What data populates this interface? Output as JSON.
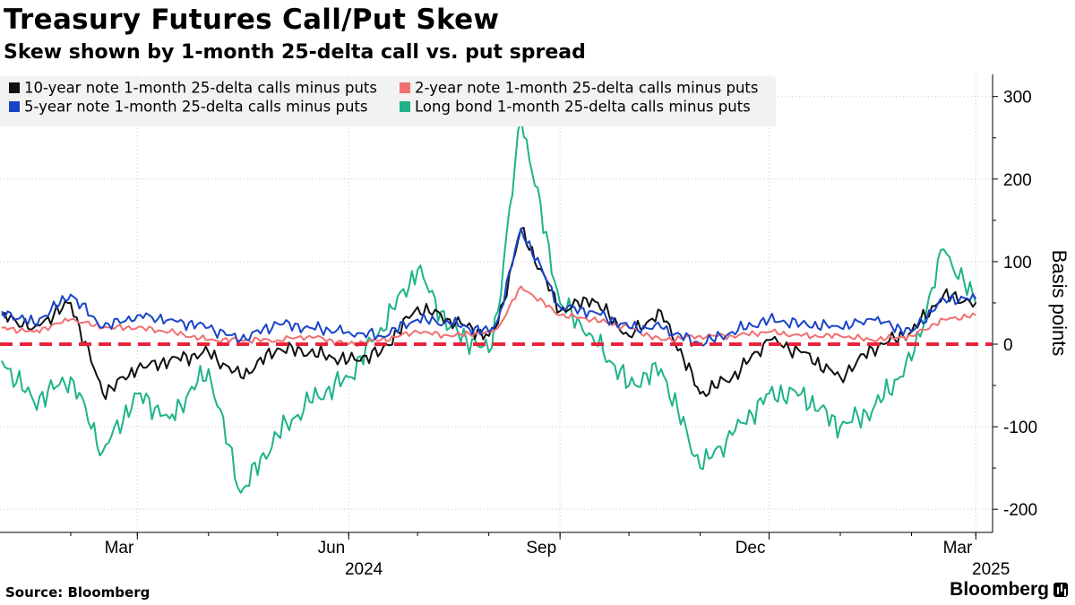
{
  "title": "Treasury Futures Call/Put Skew",
  "subtitle": "Skew shown by 1-month 25-delta call vs. put spread",
  "source": "Source: Bloomberg",
  "brand": "Bloomberg",
  "chart_data": {
    "type": "line",
    "title": "Treasury Futures Call/Put Skew",
    "subtitle": "Skew shown by 1-month 25-delta call vs. put spread",
    "ylabel": "Basis points",
    "ylim": [
      -230,
      325
    ],
    "y_ticks": [
      -200,
      -100,
      0,
      100,
      200,
      300
    ],
    "y_tick_labels": [
      "-200",
      "-100",
      "0",
      "100",
      "200",
      "300"
    ],
    "xlim": [
      "2024-01-02",
      "2025-03-04"
    ],
    "x_ticks": [
      {
        "date": "2024-03-01",
        "label": "Mar"
      },
      {
        "date": "2024-06-01",
        "label": "Jun"
      },
      {
        "date": "2024-09-01",
        "label": "Sep"
      },
      {
        "date": "2024-12-01",
        "label": "Dec"
      },
      {
        "date": "2025-03-01",
        "label": "Mar"
      }
    ],
    "year_labels": [
      {
        "date": "2024-06-01",
        "label": "2024"
      },
      {
        "date": "2025-03-01",
        "label": "2025"
      }
    ],
    "year_label_align": "right",
    "grid": true,
    "zero_line": {
      "value": 0,
      "color": "#e8243b",
      "style": "dashed"
    },
    "legend_position": "top-left",
    "legend_background": "#f2f2f2",
    "x": [
      "2024-01-02",
      "2024-01-16",
      "2024-02-01",
      "2024-02-15",
      "2024-03-01",
      "2024-03-15",
      "2024-04-01",
      "2024-04-15",
      "2024-05-01",
      "2024-05-15",
      "2024-06-01",
      "2024-06-15",
      "2024-07-01",
      "2024-07-15",
      "2024-08-01",
      "2024-08-05",
      "2024-08-15",
      "2024-09-01",
      "2024-09-15",
      "2024-10-01",
      "2024-10-15",
      "2024-11-01",
      "2024-11-15",
      "2024-12-01",
      "2024-12-15",
      "2025-01-01",
      "2025-01-15",
      "2025-02-01",
      "2025-02-15",
      "2025-03-01"
    ],
    "series": [
      {
        "name": "10-year note 1-month 25-delta calls minus puts",
        "color": "#111111",
        "values": [
          35,
          20,
          50,
          -60,
          -30,
          -20,
          -10,
          -40,
          -5,
          -10,
          -20,
          -10,
          45,
          30,
          10,
          25,
          140,
          40,
          55,
          10,
          40,
          -60,
          -40,
          5,
          -10,
          -40,
          -5,
          15,
          60,
          50
        ]
      },
      {
        "name": "2-year note 1-month 25-delta calls minus puts",
        "color": "#f07070",
        "values": [
          20,
          15,
          30,
          20,
          20,
          15,
          5,
          5,
          5,
          10,
          0,
          5,
          15,
          10,
          15,
          20,
          70,
          35,
          30,
          20,
          5,
          10,
          10,
          15,
          10,
          10,
          5,
          10,
          30,
          35
        ]
      },
      {
        "name": "5-year note 1-month 25-delta calls minus puts",
        "color": "#1a44c8",
        "values": [
          40,
          25,
          60,
          20,
          35,
          30,
          20,
          5,
          25,
          20,
          15,
          10,
          30,
          25,
          15,
          30,
          140,
          45,
          40,
          20,
          20,
          0,
          15,
          30,
          25,
          20,
          30,
          15,
          55,
          55
        ]
      },
      {
        "name": "Long bond 1-month 25-delta calls minus puts",
        "color": "#1fb38a",
        "values": [
          -20,
          -70,
          -40,
          -130,
          -60,
          -90,
          -30,
          -180,
          -110,
          -70,
          -40,
          20,
          90,
          20,
          -10,
          40,
          275,
          50,
          10,
          -50,
          -30,
          -150,
          -110,
          -60,
          -60,
          -100,
          -80,
          -20,
          115,
          50
        ]
      }
    ]
  }
}
